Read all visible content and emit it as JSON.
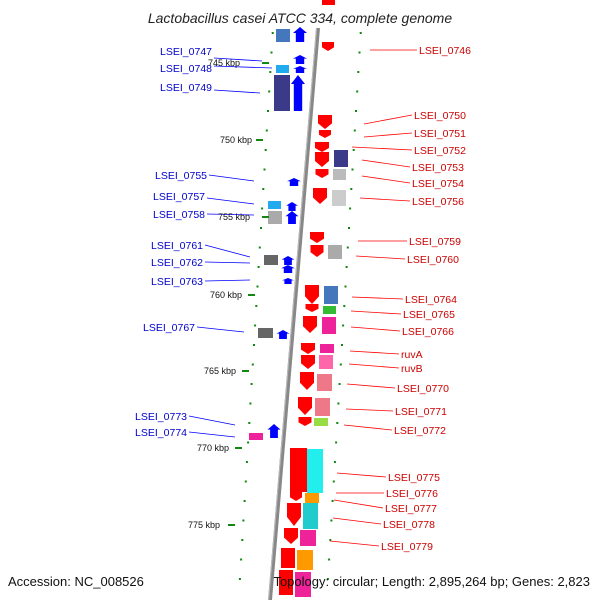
{
  "title": "Lactobacillus casei ATCC 334, complete genome",
  "footer": {
    "accession": "Accession: NC_008526",
    "topology": "Topology: circular; Length: 2,895,264 bp; Genes: 2,823"
  },
  "colors": {
    "forward_strand": "#ff0000",
    "reverse_strand": "#0000ff",
    "backbone": "#888888",
    "tick": "#118811",
    "left_label": "#0000cc",
    "right_label": "#cc0000"
  },
  "scale_labels": [
    "745 kbp",
    "750 kbp",
    "755 kbp",
    "760 kbp",
    "765 kbp",
    "770 kbp",
    "775 kbp"
  ],
  "left_genes": [
    "LSEI_0747",
    "LSEI_0748",
    "LSEI_0749",
    "LSEI_0755",
    "LSEI_0757",
    "LSEI_0758",
    "LSEI_0761",
    "LSEI_0762",
    "LSEI_0763",
    "LSEI_0767",
    "LSEI_0773",
    "LSEI_0774"
  ],
  "right_genes": [
    "LSEI_0746",
    "LSEI_0750",
    "LSEI_0751",
    "LSEI_0752",
    "LSEI_0753",
    "LSEI_0754",
    "LSEI_0756",
    "LSEI_0759",
    "LSEI_0760",
    "LSEI_0764",
    "LSEI_0765",
    "LSEI_0766",
    "ruvA",
    "ruvB",
    "LSEI_0770",
    "LSEI_0771",
    "LSEI_0772",
    "LSEI_0775",
    "LSEI_0776",
    "LSEI_0777",
    "LSEI_0778",
    "LSEI_0779"
  ]
}
